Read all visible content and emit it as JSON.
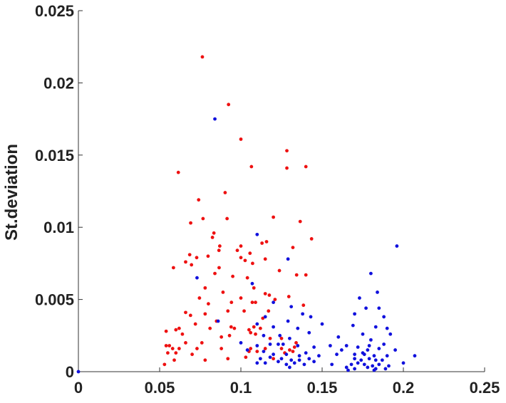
{
  "chart_data": {
    "type": "scatter",
    "title": "",
    "xlabel": "",
    "ylabel": "St.deviation",
    "xlim": [
      0,
      0.25
    ],
    "ylim": [
      0,
      0.025
    ],
    "xticks": [
      0,
      0.05,
      0.1,
      0.15,
      0.2,
      0.25
    ],
    "xtick_labels": [
      "0",
      "0.05",
      "0.1",
      "0.15",
      "0.2",
      "0.25"
    ],
    "yticks": [
      0,
      0.005,
      0.01,
      0.015,
      0.02,
      0.025
    ],
    "ytick_labels": [
      "0",
      "0.005",
      "0.01",
      "0.015",
      "0.02",
      "0.025"
    ],
    "grid": false,
    "series": [
      {
        "color": "#ee1111",
        "points": [
          [
            0.0763,
            0.0218
          ],
          [
            0.0924,
            0.0185
          ],
          [
            0.1,
            0.0161
          ],
          [
            0.1065,
            0.0142
          ],
          [
            0.1283,
            0.0153
          ],
          [
            0.1283,
            0.0141
          ],
          [
            0.14,
            0.0142
          ],
          [
            0.0615,
            0.0138
          ],
          [
            0.074,
            0.0119
          ],
          [
            0.0903,
            0.0124
          ],
          [
            0.0767,
            0.0106
          ],
          [
            0.0915,
            0.0106
          ],
          [
            0.12,
            0.0107
          ],
          [
            0.1365,
            0.0104
          ],
          [
            0.0691,
            0.0103
          ],
          [
            0.0834,
            0.0096
          ],
          [
            0.1,
            0.0087
          ],
          [
            0.113,
            0.0089
          ],
          [
            0.1158,
            0.009
          ],
          [
            0.1435,
            0.0092
          ],
          [
            0.0825,
            0.0093
          ],
          [
            0.087,
            0.0087
          ],
          [
            0.132,
            0.0086
          ],
          [
            0.0585,
            0.0072
          ],
          [
            0.0685,
            0.0081
          ],
          [
            0.0728,
            0.0079
          ],
          [
            0.0798,
            0.008
          ],
          [
            0.0865,
            0.0084
          ],
          [
            0.0978,
            0.0084
          ],
          [
            0.1056,
            0.0082
          ],
          [
            0.1,
            0.0079
          ],
          [
            0.1026,
            0.0077
          ],
          [
            0.066,
            0.0076
          ],
          [
            0.0696,
            0.0074
          ],
          [
            0.0866,
            0.0072
          ],
          [
            0.084,
            0.0068
          ],
          [
            0.1072,
            0.0075
          ],
          [
            0.115,
            0.0078
          ],
          [
            0.1237,
            0.007
          ],
          [
            0.1343,
            0.0067
          ],
          [
            0.14,
            0.0067
          ],
          [
            0.095,
            0.0066
          ],
          [
            0.104,
            0.0065
          ],
          [
            0.108,
            0.0058
          ],
          [
            0.078,
            0.0058
          ],
          [
            0.089,
            0.0055
          ],
          [
            0.115,
            0.0054
          ],
          [
            0.1175,
            0.0053
          ],
          [
            0.0745,
            0.0051
          ],
          [
            0.1,
            0.0051
          ],
          [
            0.1295,
            0.0052
          ],
          [
            0.1385,
            0.0046
          ],
          [
            0.107,
            0.0048
          ],
          [
            0.109,
            0.0048
          ],
          [
            0.121,
            0.005
          ],
          [
            0.08,
            0.0047
          ],
          [
            0.0942,
            0.0048
          ],
          [
            0.117,
            0.0042
          ],
          [
            0.066,
            0.0041
          ],
          [
            0.092,
            0.0042
          ],
          [
            0.102,
            0.0042
          ],
          [
            0.069,
            0.0039
          ],
          [
            0.078,
            0.004
          ],
          [
            0.1135,
            0.0037
          ],
          [
            0.085,
            0.0035
          ],
          [
            0.072,
            0.0033
          ],
          [
            0.06,
            0.0029
          ],
          [
            0.062,
            0.003
          ],
          [
            0.081,
            0.003
          ],
          [
            0.094,
            0.0031
          ],
          [
            0.096,
            0.003
          ],
          [
            0.105,
            0.0029
          ],
          [
            0.108,
            0.0031
          ],
          [
            0.112,
            0.003
          ],
          [
            0.054,
            0.0028
          ],
          [
            0.064,
            0.0026
          ],
          [
            0.106,
            0.0027
          ],
          [
            0.109,
            0.0026
          ],
          [
            0.088,
            0.0024
          ],
          [
            0.093,
            0.0025
          ],
          [
            0.118,
            0.0023
          ],
          [
            0.125,
            0.0023
          ],
          [
            0.066,
            0.002
          ],
          [
            0.076,
            0.002
          ],
          [
            0.054,
            0.0018
          ],
          [
            0.056,
            0.0018
          ],
          [
            0.058,
            0.0016
          ],
          [
            0.073,
            0.0016
          ],
          [
            0.088,
            0.0016
          ],
          [
            0.106,
            0.0016
          ],
          [
            0.115,
            0.0016
          ],
          [
            0.125,
            0.0016
          ],
          [
            0.13,
            0.0015
          ],
          [
            0.133,
            0.0017
          ],
          [
            0.055,
            0.0013
          ],
          [
            0.06,
            0.0013
          ],
          [
            0.07,
            0.0012
          ],
          [
            0.105,
            0.0014
          ],
          [
            0.11,
            0.0014
          ],
          [
            0.127,
            0.0013
          ],
          [
            0.132,
            0.0014
          ],
          [
            0.053,
            0.0005
          ],
          [
            0.059,
            0.0008
          ],
          [
            0.078,
            0.0008
          ],
          [
            0.092,
            0.0009
          ],
          [
            0.103,
            0.001
          ],
          [
            0.12,
            0.0009
          ],
          [
            0.062,
            0.0016
          ],
          [
            0.134,
            0.002
          ]
        ]
      },
      {
        "color": "#1111dd",
        "points": [
          [
            0.0,
            0.0
          ],
          [
            0.084,
            0.0175
          ],
          [
            0.196,
            0.0087
          ],
          [
            0.11,
            0.0095
          ],
          [
            0.129,
            0.0078
          ],
          [
            0.073,
            0.0065
          ],
          [
            0.18,
            0.0068
          ],
          [
            0.107,
            0.0061
          ],
          [
            0.173,
            0.0051
          ],
          [
            0.12,
            0.0048
          ],
          [
            0.184,
            0.0055
          ],
          [
            0.185,
            0.0044
          ],
          [
            0.131,
            0.0045
          ],
          [
            0.138,
            0.004
          ],
          [
            0.17,
            0.004
          ],
          [
            0.177,
            0.0044
          ],
          [
            0.188,
            0.0038
          ],
          [
            0.115,
            0.0038
          ],
          [
            0.129,
            0.0035
          ],
          [
            0.143,
            0.0038
          ],
          [
            0.11,
            0.0033
          ],
          [
            0.12,
            0.0031
          ],
          [
            0.135,
            0.003
          ],
          [
            0.15,
            0.0033
          ],
          [
            0.169,
            0.0032
          ],
          [
            0.183,
            0.0031
          ],
          [
            0.192,
            0.0026
          ],
          [
            0.114,
            0.0025
          ],
          [
            0.124,
            0.0025
          ],
          [
            0.13,
            0.0023
          ],
          [
            0.142,
            0.0027
          ],
          [
            0.16,
            0.0024
          ],
          [
            0.175,
            0.0026
          ],
          [
            0.18,
            0.0022
          ],
          [
            0.188,
            0.0019
          ],
          [
            0.1,
            0.002
          ],
          [
            0.11,
            0.0018
          ],
          [
            0.118,
            0.0019
          ],
          [
            0.123,
            0.0019
          ],
          [
            0.126,
            0.0019
          ],
          [
            0.135,
            0.0018
          ],
          [
            0.145,
            0.0017
          ],
          [
            0.155,
            0.0018
          ],
          [
            0.165,
            0.0018
          ],
          [
            0.172,
            0.0017
          ],
          [
            0.178,
            0.0015
          ],
          [
            0.185,
            0.0016
          ],
          [
            0.195,
            0.0015
          ],
          [
            0.207,
            0.0011
          ],
          [
            0.086,
            0.0035
          ],
          [
            0.104,
            0.0015
          ],
          [
            0.114,
            0.0014
          ],
          [
            0.12,
            0.0012
          ],
          [
            0.128,
            0.0012
          ],
          [
            0.136,
            0.0011
          ],
          [
            0.14,
            0.0013
          ],
          [
            0.148,
            0.0011
          ],
          [
            0.159,
            0.0012
          ],
          [
            0.17,
            0.0012
          ],
          [
            0.176,
            0.0012
          ],
          [
            0.182,
            0.0011
          ],
          [
            0.19,
            0.0011
          ],
          [
            0.112,
            0.0009
          ],
          [
            0.118,
            0.001
          ],
          [
            0.125,
            0.0009
          ],
          [
            0.131,
            0.0008
          ],
          [
            0.136,
            0.0008
          ],
          [
            0.142,
            0.0009
          ],
          [
            0.17,
            0.0009
          ],
          [
            0.174,
            0.0008
          ],
          [
            0.179,
            0.0009
          ],
          [
            0.183,
            0.0008
          ],
          [
            0.187,
            0.0008
          ],
          [
            0.11,
            0.0006
          ],
          [
            0.115,
            0.0006
          ],
          [
            0.123,
            0.0007
          ],
          [
            0.128,
            0.0005
          ],
          [
            0.133,
            0.0006
          ],
          [
            0.139,
            0.0005
          ],
          [
            0.145,
            0.0007
          ],
          [
            0.168,
            0.0005
          ],
          [
            0.172,
            0.0006
          ],
          [
            0.176,
            0.0005
          ],
          [
            0.181,
            0.0004
          ],
          [
            0.185,
            0.0005
          ],
          [
            0.191,
            0.0004
          ],
          [
            0.2,
            0.0006
          ],
          [
            0.13,
            0.0003
          ],
          [
            0.165,
            0.0003
          ],
          [
            0.17,
            0.0002
          ],
          [
            0.178,
            0.0003
          ],
          [
            0.183,
            0.0002
          ],
          [
            0.189,
            0.0002
          ],
          [
            0.166,
            0.0001
          ],
          [
            0.182,
            0.0001
          ],
          [
            0.175,
            0.0013
          ],
          [
            0.179,
            0.0018
          ],
          [
            0.19,
            0.003
          ],
          [
            0.162,
            0.0015
          ],
          [
            0.156,
            0.0005
          ]
        ]
      }
    ]
  }
}
